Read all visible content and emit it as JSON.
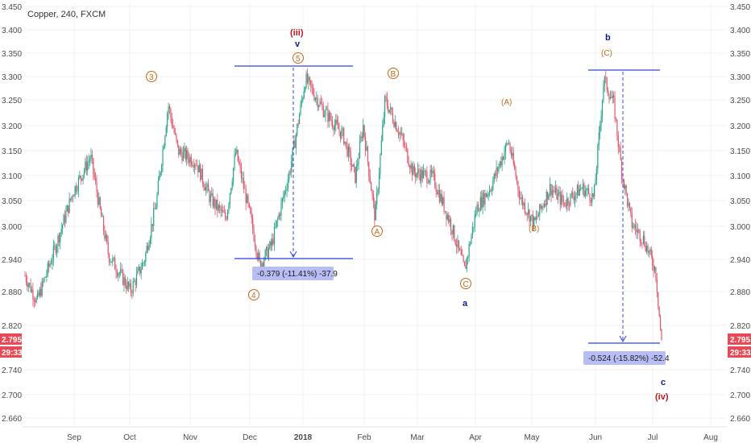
{
  "title": "Copper, 240, FXCM",
  "colors": {
    "up": "#2aa389",
    "down": "#e0566b",
    "wave_red": "#c0151d",
    "wave_blue": "#0d1b8a",
    "sub_orange": "#c26a1c",
    "measure_line": "#2f44e0",
    "measure_box": "#b9bdf5",
    "badge": "#e94855",
    "grid": "#f0f0f0"
  },
  "price_badge": {
    "value": "2.795",
    "timer": "29:33"
  },
  "chart_data": {
    "type": "candlestick",
    "y_ticks": [
      "3.450",
      "3.400",
      "3.350",
      "3.300",
      "3.250",
      "3.200",
      "3.150",
      "3.100",
      "3.050",
      "3.000",
      "2.940",
      "2.880",
      "2.820",
      "2.760",
      "2.740",
      "2.700",
      "2.660"
    ],
    "x_ticks": [
      "Sep",
      "Oct",
      "Nov",
      "Dec",
      "2018",
      "Feb",
      "Mar",
      "Apr",
      "May",
      "Jun",
      "Jul",
      "Aug"
    ],
    "anchors": [
      {
        "d": 0,
        "p": 2.93
      },
      {
        "d": 6,
        "p": 2.88
      },
      {
        "d": 14,
        "p": 2.97
      },
      {
        "d": 24,
        "p": 3.09
      },
      {
        "d": 33,
        "p": 3.16
      },
      {
        "d": 38,
        "p": 3.05
      },
      {
        "d": 42,
        "p": 2.97
      },
      {
        "d": 53,
        "p": 2.9
      },
      {
        "d": 60,
        "p": 2.96
      },
      {
        "d": 66,
        "p": 3.07
      },
      {
        "d": 72,
        "p": 3.26
      },
      {
        "d": 77,
        "p": 3.17
      },
      {
        "d": 86,
        "p": 3.15
      },
      {
        "d": 93,
        "p": 3.08
      },
      {
        "d": 101,
        "p": 3.04
      },
      {
        "d": 106,
        "p": 3.17
      },
      {
        "d": 114,
        "p": 3.03
      },
      {
        "d": 118,
        "p": 2.95
      },
      {
        "d": 124,
        "p": 2.99
      },
      {
        "d": 133,
        "p": 3.13
      },
      {
        "d": 141,
        "p": 3.31
      },
      {
        "d": 150,
        "p": 3.25
      },
      {
        "d": 160,
        "p": 3.2
      },
      {
        "d": 166,
        "p": 3.12
      },
      {
        "d": 170,
        "p": 3.22
      },
      {
        "d": 176,
        "p": 3.04
      },
      {
        "d": 181,
        "p": 3.27
      },
      {
        "d": 189,
        "p": 3.2
      },
      {
        "d": 195,
        "p": 3.13
      },
      {
        "d": 205,
        "p": 3.12
      },
      {
        "d": 214,
        "p": 3.03
      },
      {
        "d": 221,
        "p": 2.94
      },
      {
        "d": 227,
        "p": 3.06
      },
      {
        "d": 234,
        "p": 3.1
      },
      {
        "d": 243,
        "p": 3.19
      },
      {
        "d": 249,
        "p": 3.08
      },
      {
        "d": 256,
        "p": 3.03
      },
      {
        "d": 264,
        "p": 3.1
      },
      {
        "d": 271,
        "p": 3.07
      },
      {
        "d": 280,
        "p": 3.1
      },
      {
        "d": 286,
        "p": 3.08
      },
      {
        "d": 291,
        "p": 3.31
      },
      {
        "d": 296,
        "p": 3.26
      },
      {
        "d": 300,
        "p": 3.13
      },
      {
        "d": 305,
        "p": 3.03
      },
      {
        "d": 311,
        "p": 3.0
      },
      {
        "d": 317,
        "p": 2.94
      },
      {
        "d": 320,
        "p": 2.8
      }
    ]
  },
  "annotations": {
    "wave_iii": "(iii)",
    "wave_v": "v",
    "circ_5": "5",
    "circ_3": "3",
    "circ_4": "4",
    "circ_A": "A",
    "circ_B": "B",
    "circ_C": "C",
    "sub_A": "(A)",
    "sub_B": "(B)",
    "sub_C": "(C)",
    "wave_a": "a",
    "wave_b": "b",
    "wave_c": "c",
    "wave_iv": "(iv)",
    "measure_1": "-0.379 (-11.41%) -37.9",
    "measure_2": "-0.524 (-15.82%) -52.4"
  }
}
